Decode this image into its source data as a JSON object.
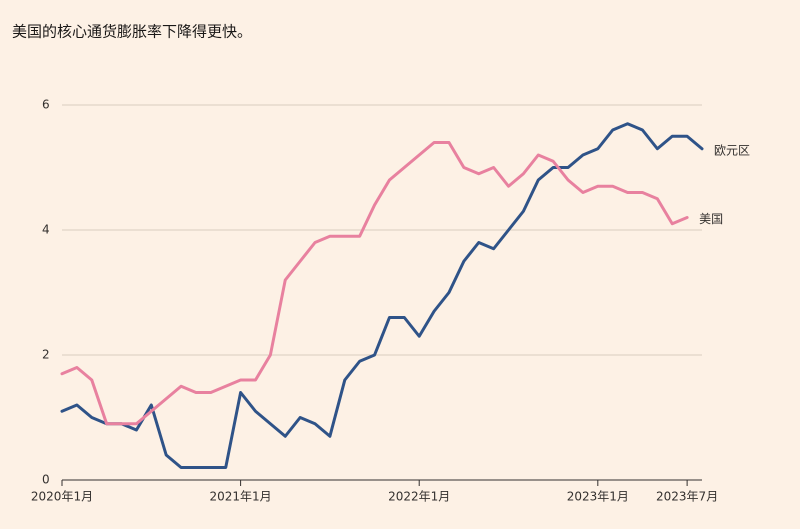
{
  "chart_data": {
    "type": "line",
    "title": "美国的核心通货膨胀率下降得更快。",
    "x": [
      "2020-01",
      "2020-02",
      "2020-03",
      "2020-04",
      "2020-05",
      "2020-06",
      "2020-07",
      "2020-08",
      "2020-09",
      "2020-10",
      "2020-11",
      "2020-12",
      "2021-01",
      "2021-02",
      "2021-03",
      "2021-04",
      "2021-05",
      "2021-06",
      "2021-07",
      "2021-08",
      "2021-09",
      "2021-10",
      "2021-11",
      "2021-12",
      "2022-01",
      "2022-02",
      "2022-03",
      "2022-04",
      "2022-05",
      "2022-06",
      "2022-07",
      "2022-08",
      "2022-09",
      "2022-10",
      "2022-11",
      "2022-12",
      "2023-01",
      "2023-02",
      "2023-03",
      "2023-04",
      "2023-05",
      "2023-06",
      "2023-07",
      "2023-08"
    ],
    "series": [
      {
        "name": "欧元区",
        "color": "#2f5388",
        "values": [
          1.1,
          1.2,
          1.0,
          0.9,
          0.9,
          0.8,
          1.2,
          0.4,
          0.2,
          0.2,
          0.2,
          0.2,
          1.4,
          1.1,
          0.9,
          0.7,
          1.0,
          0.9,
          0.7,
          1.6,
          1.9,
          2.0,
          2.6,
          2.6,
          2.3,
          2.7,
          3.0,
          3.5,
          3.8,
          3.7,
          4.0,
          4.3,
          4.8,
          5.0,
          5.0,
          5.2,
          5.3,
          5.6,
          5.7,
          5.6,
          5.3,
          5.5,
          5.5,
          5.3
        ]
      },
      {
        "name": "美国",
        "color": "#e8819f",
        "values": [
          1.7,
          1.8,
          1.6,
          0.9,
          0.9,
          0.9,
          1.1,
          1.3,
          1.5,
          1.4,
          1.4,
          1.5,
          1.6,
          1.6,
          2.0,
          3.2,
          3.5,
          3.8,
          3.9,
          3.9,
          3.9,
          4.4,
          4.8,
          5.0,
          5.2,
          5.4,
          5.4,
          5.0,
          4.9,
          5.0,
          4.7,
          4.9,
          5.2,
          5.1,
          4.8,
          4.6,
          4.7,
          4.7,
          4.6,
          4.6,
          4.5,
          4.1,
          4.2,
          null
        ]
      }
    ],
    "xlim": [
      "2020-01",
      "2023-08"
    ],
    "xticks": [
      {
        "value": "2020-01",
        "label": "2020年1月"
      },
      {
        "value": "2021-01",
        "label": "2021年1月"
      },
      {
        "value": "2022-01",
        "label": "2022年1月"
      },
      {
        "value": "2023-01",
        "label": "2023年1月"
      },
      {
        "value": "2023-07",
        "label": "2023年7月"
      }
    ],
    "ylim": [
      0,
      6
    ],
    "yticks": [
      0,
      2,
      4,
      6
    ],
    "grid": true
  }
}
